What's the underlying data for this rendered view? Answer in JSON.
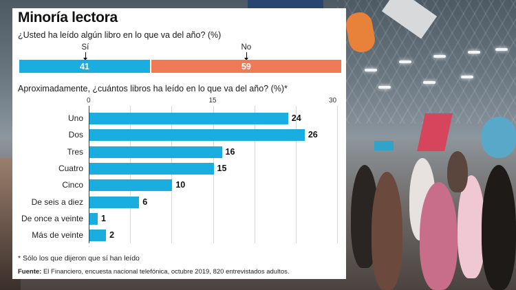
{
  "header": {
    "title": "Minoría lectora"
  },
  "question1": {
    "text": "¿Usted ha leído algún libro en lo que va del año? (%)",
    "segments": [
      {
        "label": "Sí",
        "value": 41,
        "color": "#1aaee0"
      },
      {
        "label": "No",
        "value": 59,
        "color": "#f07a56"
      }
    ]
  },
  "question2": {
    "text": "Aproximadamente, ¿cuántos libros ha leído en lo que va del año? (%)*"
  },
  "chart_data": [
    {
      "type": "bar",
      "orientation": "stacked-horizontal",
      "categories": [
        "Sí",
        "No"
      ],
      "values": [
        41,
        59
      ],
      "colors": [
        "#1aaee0",
        "#f07a56"
      ]
    },
    {
      "type": "bar",
      "orientation": "horizontal",
      "categories": [
        "Uno",
        "Dos",
        "Tres",
        "Cuatro",
        "Cinco",
        "De seis a diez",
        "De once a veinte",
        "Más de veinte"
      ],
      "values": [
        24,
        26,
        16,
        15,
        10,
        6,
        1,
        2
      ],
      "xlim": [
        0,
        30
      ],
      "xticks": [
        "0",
        "15",
        "30"
      ],
      "grid": true,
      "color": "#1aaee0"
    }
  ],
  "footer": {
    "note": "* Sólo los que dijeron que sí han leído",
    "source_label": "Fuente:",
    "source_text": "El Financiero, encuesta nacional telefónica, octubre 2019, 820 entrevistados adultos."
  }
}
